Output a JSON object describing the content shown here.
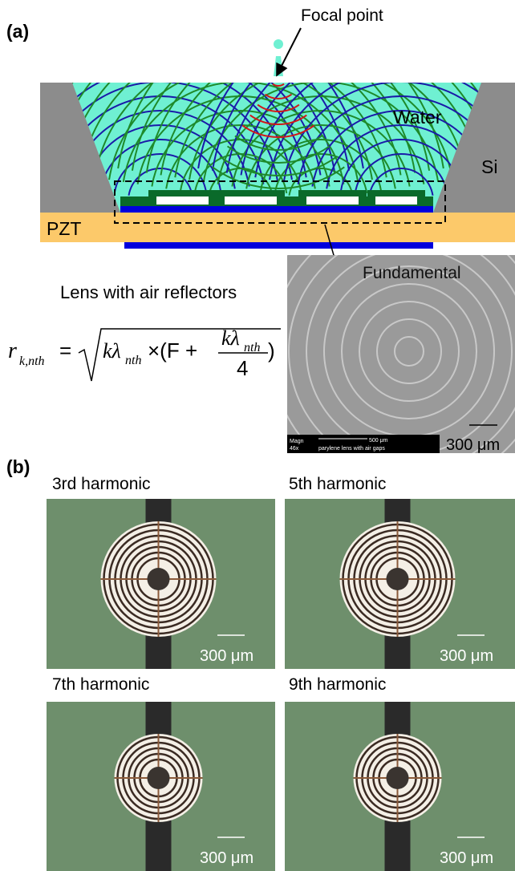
{
  "panel_a": {
    "label": "(a)",
    "focal_point": "Focal point",
    "water": "Water",
    "si": "Si",
    "pzt": "PZT",
    "lens_caption": "Lens with air reflectors",
    "formula": {
      "r": "r",
      "r_sub": "k,nth",
      "equals": "=",
      "k_lambda": "kλ",
      "lambda_sub": "nth",
      "times": "×(F +",
      "num_k_lambda": "kλ",
      "num_sub": "nth",
      "denominator": "4",
      "close": ")"
    },
    "sem": {
      "title": "Fundamental",
      "magn_label": "Magn",
      "magn_value": "46x",
      "bar_scale": "500 μm",
      "description": "parylene lens with air gaps",
      "scale": "300 μm"
    }
  },
  "panel_b": {
    "label": "(b)",
    "images": [
      {
        "title": "3rd harmonic",
        "scale": "300 μm"
      },
      {
        "title": "5th harmonic",
        "scale": "300 μm"
      },
      {
        "title": "7th harmonic",
        "scale": "300 μm"
      },
      {
        "title": "9th harmonic",
        "scale": "300 μm"
      }
    ]
  }
}
